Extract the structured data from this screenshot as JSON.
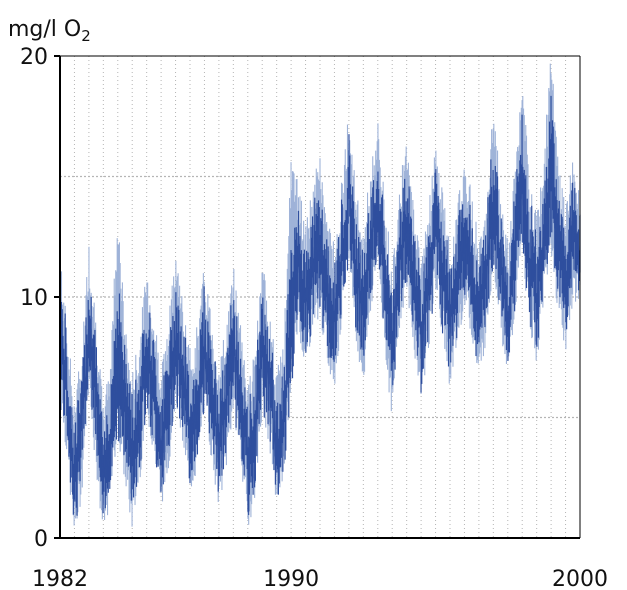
{
  "chart_data": {
    "type": "line",
    "title": "",
    "xlabel": "",
    "ylabel": "mg/l O2",
    "ylabel_parts": {
      "main": "mg/l O",
      "subscript": "2"
    },
    "xlim": [
      1982,
      2000
    ],
    "ylim": [
      0,
      20
    ],
    "x_ticks": [
      1982,
      1990,
      2000
    ],
    "y_ticks": [
      0,
      10,
      20
    ],
    "x_tick_labels": [
      "1982",
      "1990",
      "2000"
    ],
    "y_tick_labels": [
      "0",
      "10",
      "20"
    ],
    "grid": {
      "vertical_every_years": 0.5,
      "vertical_style": "dotted",
      "horizontal_at": [
        5,
        10,
        15
      ],
      "horizontal_style": "dotted"
    },
    "legend": "none",
    "colors": {
      "primary": "#2f4f9e",
      "secondary": "#9fb3d8",
      "grid": "#b5b5b5",
      "axes": "#000000"
    },
    "series": [
      {
        "x": [
          1982.0,
          1982.25,
          1982.5,
          1982.75,
          1983.0,
          1983.25,
          1983.5,
          1983.75,
          1984.0,
          1984.25,
          1984.5,
          1984.75,
          1985.0,
          1985.25,
          1985.5,
          1985.75,
          1986.0,
          1986.25,
          1986.5,
          1986.75,
          1987.0,
          1987.25,
          1987.5,
          1987.75,
          1988.0,
          1988.25,
          1988.5,
          1988.75,
          1989.0,
          1989.25,
          1989.5,
          1989.75,
          1990.0,
          1990.25,
          1990.5,
          1990.75,
          1991.0,
          1991.25,
          1991.5,
          1991.75,
          1992.0,
          1992.25,
          1992.5,
          1992.75,
          1993.0,
          1993.25,
          1993.5,
          1993.75,
          1994.0,
          1994.25,
          1994.5,
          1994.75,
          1995.0,
          1995.25,
          1995.5,
          1995.75,
          1996.0,
          1996.25,
          1996.5,
          1996.75,
          1997.0,
          1997.25,
          1997.5,
          1997.75,
          1998.0,
          1998.25,
          1998.5,
          1998.75,
          1999.0,
          1999.25,
          1999.5,
          1999.75,
          2000.0
        ],
        "y": [
          8.5,
          6.0,
          2.5,
          4.5,
          9.0,
          6.0,
          2.0,
          4.5,
          7.5,
          5.5,
          3.5,
          5.0,
          8.0,
          6.0,
          4.0,
          5.5,
          8.5,
          6.5,
          4.5,
          5.5,
          8.0,
          6.0,
          4.0,
          5.5,
          8.0,
          6.0,
          3.0,
          4.5,
          8.0,
          6.5,
          3.5,
          5.0,
          9.0,
          12.0,
          9.5,
          11.5,
          12.0,
          10.0,
          9.0,
          11.5,
          14.5,
          11.0,
          9.5,
          12.0,
          14.0,
          10.5,
          8.0,
          11.5,
          13.0,
          10.5,
          8.5,
          10.5,
          13.0,
          11.0,
          9.0,
          10.5,
          12.5,
          11.0,
          9.0,
          11.0,
          14.0,
          11.5,
          9.0,
          12.0,
          15.0,
          11.5,
          10.0,
          12.5,
          15.5,
          12.0,
          10.5,
          12.5,
          12.0
        ],
        "low": [
          6.5,
          4.0,
          0.5,
          2.5,
          7.0,
          3.5,
          0.5,
          2.5,
          5.0,
          3.0,
          1.0,
          3.0,
          6.0,
          4.0,
          2.0,
          3.5,
          6.5,
          4.5,
          2.5,
          3.5,
          6.0,
          4.0,
          2.0,
          3.5,
          6.0,
          4.0,
          1.0,
          2.5,
          6.0,
          4.5,
          2.0,
          3.5,
          7.0,
          9.5,
          7.5,
          9.5,
          10.0,
          8.0,
          7.0,
          9.5,
          12.0,
          9.0,
          7.0,
          10.0,
          12.0,
          8.5,
          5.5,
          9.5,
          11.0,
          8.5,
          6.5,
          8.5,
          11.0,
          9.0,
          7.0,
          8.5,
          10.5,
          9.0,
          7.0,
          9.0,
          12.0,
          9.5,
          7.0,
          10.0,
          12.5,
          9.5,
          8.0,
          10.5,
          12.5,
          10.0,
          8.5,
          10.5,
          10.5
        ],
        "high": [
          11.0,
          8.0,
          5.0,
          7.0,
          11.5,
          8.5,
          4.5,
          7.0,
          13.0,
          8.0,
          6.0,
          7.5,
          10.5,
          8.5,
          6.5,
          8.0,
          11.5,
          9.0,
          7.0,
          8.0,
          10.5,
          8.5,
          6.5,
          8.0,
          10.5,
          8.5,
          5.5,
          7.0,
          10.5,
          9.0,
          6.0,
          7.5,
          15.0,
          14.0,
          12.0,
          14.0,
          15.0,
          12.5,
          11.5,
          14.0,
          17.0,
          13.5,
          12.0,
          14.5,
          16.5,
          13.0,
          10.5,
          14.0,
          15.5,
          13.0,
          11.0,
          13.0,
          15.5,
          13.5,
          11.5,
          13.0,
          15.0,
          13.5,
          11.5,
          13.5,
          17.0,
          14.0,
          11.5,
          14.5,
          18.5,
          14.0,
          12.5,
          15.0,
          19.5,
          14.5,
          13.0,
          15.0,
          14.0
        ]
      }
    ],
    "notes": "dense daily/weekly oxygen concentration time series; rendered as a shaded band with a darker core"
  }
}
